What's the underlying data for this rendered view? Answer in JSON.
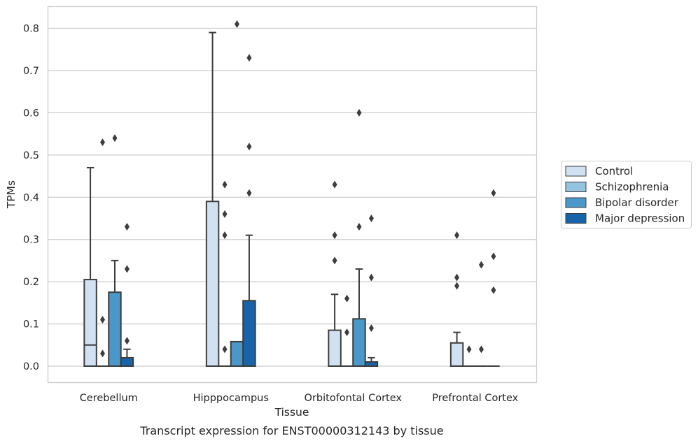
{
  "chart_data": {
    "type": "box",
    "caption": "Transcript expression for ENST00000312143 by tissue",
    "xlabel": "Tissue",
    "ylabel": "TPMs",
    "ylim": [
      -0.04,
      0.855
    ],
    "yticks": [
      "0.0",
      "0.1",
      "0.2",
      "0.3",
      "0.4",
      "0.5",
      "0.6",
      "0.7",
      "0.8"
    ],
    "grid": true,
    "legend_position": "right",
    "categories": [
      "Cerebellum",
      "Hipppocampus",
      "Orbitofontal Cortex",
      "Prefrontal Cortex"
    ],
    "series": [
      {
        "name": "Control",
        "color": "#d0e1f2",
        "boxes": [
          {
            "q1": 0.0,
            "median": 0.05,
            "q3": 0.205,
            "whisker_low": 0.0,
            "whisker_high": 0.47,
            "outliers": []
          },
          {
            "q1": 0.0,
            "median": 0.0,
            "q3": 0.39,
            "whisker_low": 0.0,
            "whisker_high": 0.79,
            "outliers": []
          },
          {
            "q1": 0.0,
            "median": 0.0,
            "q3": 0.085,
            "whisker_low": 0.0,
            "whisker_high": 0.17,
            "outliers": [
              0.25,
              0.31,
              0.43
            ]
          },
          {
            "q1": 0.0,
            "median": 0.0,
            "q3": 0.055,
            "whisker_low": 0.0,
            "whisker_high": 0.08,
            "outliers": [
              0.19,
              0.21,
              0.31
            ]
          }
        ]
      },
      {
        "name": "Schizophrenia",
        "color": "#94c4df",
        "boxes": [
          {
            "q1": 0.0,
            "median": 0.0,
            "q3": 0.0,
            "whisker_low": 0.0,
            "whisker_high": 0.0,
            "outliers": [
              0.03,
              0.11,
              0.53
            ]
          },
          {
            "q1": 0.0,
            "median": 0.0,
            "q3": 0.0,
            "whisker_low": 0.0,
            "whisker_high": 0.0,
            "outliers": [
              0.04,
              0.31,
              0.36,
              0.43
            ]
          },
          {
            "q1": 0.0,
            "median": 0.0,
            "q3": 0.0,
            "whisker_low": 0.0,
            "whisker_high": 0.0,
            "outliers": [
              0.08,
              0.16
            ]
          },
          {
            "q1": 0.0,
            "median": 0.0,
            "q3": 0.0,
            "whisker_low": 0.0,
            "whisker_high": 0.0,
            "outliers": [
              0.04
            ]
          }
        ]
      },
      {
        "name": "Bipolar disorder",
        "color": "#4a98c9",
        "boxes": [
          {
            "q1": 0.0,
            "median": 0.0,
            "q3": 0.175,
            "whisker_low": 0.0,
            "whisker_high": 0.25,
            "outliers": [
              0.54
            ]
          },
          {
            "q1": 0.0,
            "median": 0.058,
            "q3": 0.058,
            "whisker_low": 0.0,
            "whisker_high": 0.058,
            "outliers": [
              0.81
            ]
          },
          {
            "q1": 0.0,
            "median": 0.0,
            "q3": 0.112,
            "whisker_low": 0.0,
            "whisker_high": 0.23,
            "outliers": [
              0.33,
              0.6
            ]
          },
          {
            "q1": 0.0,
            "median": 0.0,
            "q3": 0.0,
            "whisker_low": 0.0,
            "whisker_high": 0.0,
            "outliers": [
              0.04,
              0.24
            ]
          }
        ]
      },
      {
        "name": "Major depression",
        "color": "#1764ab",
        "boxes": [
          {
            "q1": 0.0,
            "median": 0.0,
            "q3": 0.02,
            "whisker_low": 0.0,
            "whisker_high": 0.04,
            "outliers": [
              0.06,
              0.23,
              0.33
            ]
          },
          {
            "q1": 0.0,
            "median": 0.0,
            "q3": 0.155,
            "whisker_low": 0.0,
            "whisker_high": 0.31,
            "outliers": [
              0.41,
              0.52,
              0.73
            ]
          },
          {
            "q1": 0.0,
            "median": 0.0,
            "q3": 0.01,
            "whisker_low": 0.0,
            "whisker_high": 0.02,
            "outliers": [
              0.09,
              0.21,
              0.35
            ]
          },
          {
            "q1": 0.0,
            "median": 0.0,
            "q3": 0.0,
            "whisker_low": 0.0,
            "whisker_high": 0.0,
            "outliers": [
              0.18,
              0.26,
              0.41
            ]
          }
        ]
      }
    ]
  }
}
